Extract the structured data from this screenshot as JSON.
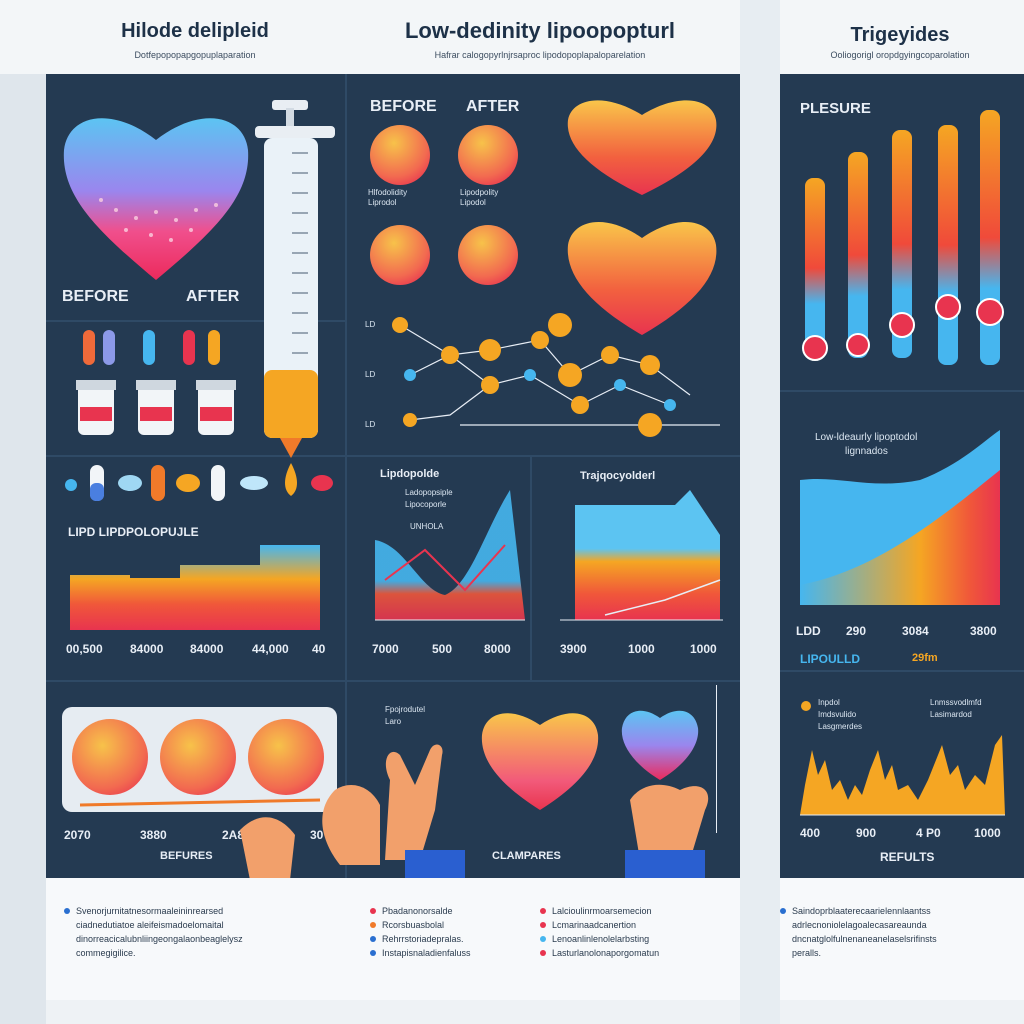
{
  "sections": {
    "hdl": {
      "title": "Hilode delipleid",
      "subtitle": "Dotfepopopapgopuplaparation"
    },
    "ldl": {
      "title": "Low-dedinity lipoopopturl",
      "subtitle": "Hafrar calogopyrlnjrsaproc lipodopoplapaloparelation"
    },
    "tg": {
      "title": "Trigeyides",
      "subtitle": "Ooliogorigl oropdgyingcoparolation"
    }
  },
  "hdl_panel": {
    "before": "BEFORE",
    "after": "AFTER"
  },
  "ldl_panel": {
    "before": "BEFORE",
    "after": "AFTER",
    "cap_left": "Hlfodolidity Liprodol",
    "cap_right": "Lipodpolity Lipodol",
    "node_labels": {
      "ld1": "LD",
      "ld2": "LD",
      "ld3": "LD"
    }
  },
  "pressure": {
    "title": "PLESURE"
  },
  "lipid_chart": {
    "title": "LIPD LIPDPOLOPUJLE",
    "ticks": [
      "00,500",
      "84000",
      "84000",
      "44,000",
      "40"
    ]
  },
  "chart_ldl": {
    "title": "Lipdopolde",
    "legend1": "Ladopopsiple",
    "legend2": "Lipocoporle",
    "legend3": "UNHOLA",
    "ticks": [
      "7000",
      "500",
      "8000"
    ]
  },
  "chart_tri": {
    "title": "Trajqocyolderl",
    "ticks": [
      "3900",
      "1000",
      "1000"
    ]
  },
  "chart_tg": {
    "title": "Low-ldeaurly lipoptodol",
    "legend": "lignnados",
    "ticks": [
      "LDD",
      "290",
      "3084",
      "3800"
    ],
    "footer": "LIPOULLD",
    "footer_value": "29fm"
  },
  "chart_results": {
    "legend1": "Inpdol",
    "legend2": "Imdsvulido",
    "legend3": "Lasgmerdes",
    "legend4": "Lnmssvodlmfd",
    "legend5": "Lasimardod",
    "ticks": [
      "400",
      "900",
      "4 P0",
      "1000"
    ],
    "footer": "REFULTS"
  },
  "bottom_panel": {
    "ticks": [
      "2070",
      "3880",
      "2A80",
      "30"
    ],
    "legend1": "Fpojrodutel",
    "legend2": "Laro",
    "label_left": "BEFURES",
    "label_right": "CLAMPARES"
  },
  "notes": {
    "left": [
      "Svenorjurnitatnesormaaleininrearsed",
      "ciadnedutiatoe aleifeismadoelomaital",
      "dinorreacicalubnliingeongalaonbeaglelysz",
      "commegigilice."
    ],
    "mid": [
      "Pbadanonorsalde",
      "Rcorsbuasbolal",
      "Rehrrstoriadepralas.",
      "Instapisnaladienfaluss"
    ],
    "mid_right": [
      "Lalcioulinrmoarsemecion",
      "Lcmarinaadcanertion",
      "Lenoanlinlenolelarbsting",
      "Lasturlanolonaporgomatun"
    ],
    "right": [
      "Saindoprblaaterecaarielennlaantss",
      "adrlecnoniolelagoalecasareaunda",
      "dncnatglolfulnenaneanelaselsrifinsts",
      "peralls."
    ]
  },
  "colors": {
    "panel": "#243a52",
    "accent_orange": "#f5a623",
    "accent_red": "#e8344f",
    "accent_blue": "#46b6ef"
  }
}
